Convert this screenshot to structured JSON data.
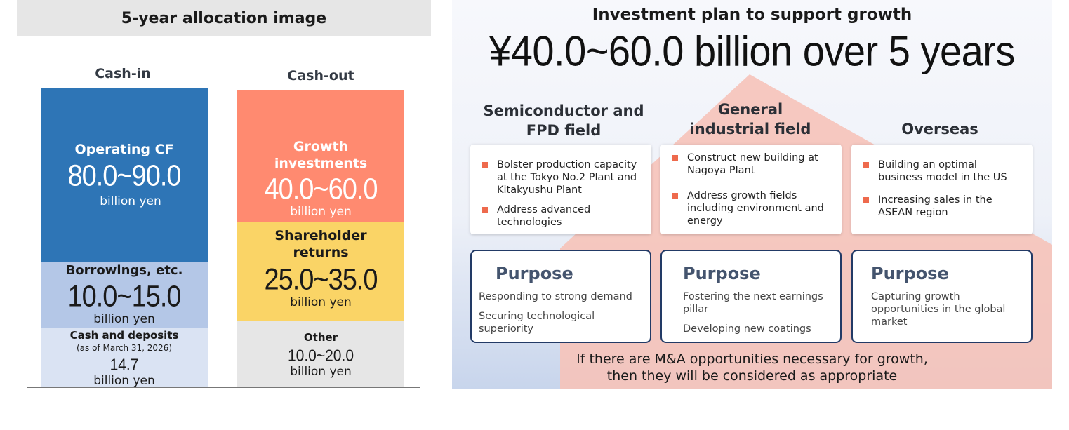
{
  "left": {
    "header": "5-year allocation image",
    "cash_in": {
      "title": "Cash-in",
      "operating": {
        "label": "Operating CF",
        "amount": "80.0~90.0",
        "unit": "billion yen"
      },
      "borrowings": {
        "label": "Borrowings, etc.",
        "amount": "10.0~15.0",
        "unit": "billion yen"
      },
      "cash": {
        "label": "Cash and deposits",
        "note": "(as of March 31, 2026)",
        "amount": "14.7",
        "unit": "billion yen"
      }
    },
    "cash_out": {
      "title": "Cash-out",
      "growth": {
        "label_line1": "Growth",
        "label_line2": "investments",
        "amount": "40.0~60.0",
        "unit": "billion yen"
      },
      "shareholder": {
        "label_line1": "Shareholder",
        "label_line2": "returns",
        "amount": "25.0~35.0",
        "unit": "billion yen"
      },
      "other": {
        "label": "Other",
        "amount": "10.0~20.0",
        "unit": "billion yen"
      }
    },
    "colors": {
      "operating": "#2e75b6",
      "borrowings": "#b4c7e7",
      "cash": "#dae3f3",
      "growth": "#ff8a70",
      "shareholder": "#fad466",
      "other": "#e6e6e6"
    }
  },
  "right": {
    "title": "Investment plan to support growth",
    "headline": "¥40.0~60.0 billion over 5 years",
    "fields": [
      {
        "title_line1": "Semiconductor and",
        "title_line2": "FPD field",
        "bullets": [
          "Bolster production capacity at the Tokyo No.2 Plant and Kitakyushu Plant",
          "Address advanced technologies"
        ],
        "purpose_title": "Purpose",
        "purpose_items": [
          "Responding to strong demand",
          "Securing technological superiority"
        ]
      },
      {
        "title_line1": "General",
        "title_line2": "industrial field",
        "bullets": [
          "Construct new building at Nagoya Plant",
          "Address growth fields including environment and energy"
        ],
        "purpose_title": "Purpose",
        "purpose_items": [
          "Fostering the next earnings pillar",
          "Developing new coatings"
        ]
      },
      {
        "title_line1": "Overseas",
        "title_line2": "",
        "bullets": [
          "Building an optimal business model in the US",
          "Increasing sales in the ASEAN region"
        ],
        "purpose_title": "Purpose",
        "purpose_items": [
          "Capturing growth opportunities in the global market"
        ]
      }
    ],
    "footnote_line1": "If there are M&A opportunities necessary for growth,",
    "footnote_line2": "then they will be considered as appropriate",
    "colors": {
      "house": "#f6c3b9",
      "bullet": "#ee6a4d",
      "purpose_border": "#223a66"
    }
  }
}
